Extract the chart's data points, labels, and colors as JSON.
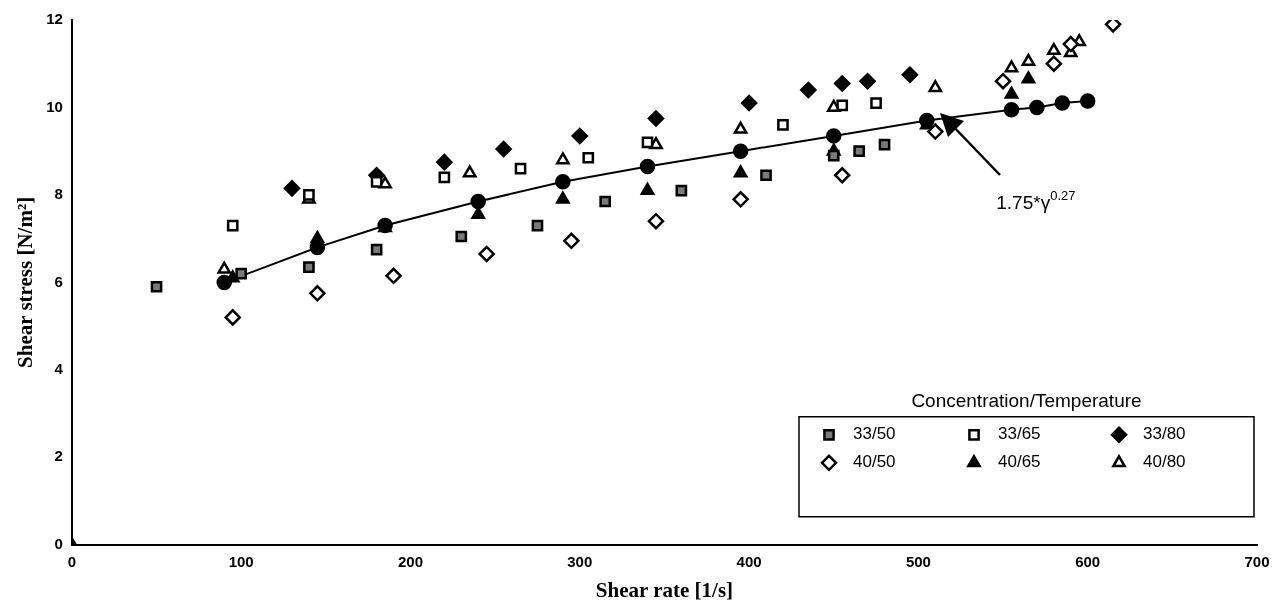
{
  "chart_data": {
    "type": "scatter",
    "xlabel": "Shear rate [1/s]",
    "ylabel": "Shear stress [N/m²]",
    "xlim": [
      0,
      700
    ],
    "xticks": [
      0,
      100,
      200,
      300,
      400,
      500,
      600,
      700
    ],
    "ylim": [
      0,
      12
    ],
    "yticks": [
      0,
      2,
      4,
      6,
      8,
      10,
      12
    ],
    "grid": false,
    "legend": "bottom right",
    "legend_title": "Concentration/Temperature",
    "annotations": [
      "1.75*γ$^{0.27}$"
    ],
    "series": [
      {
        "name": "33/50",
        "color": "#7a7a7a",
        "marker": "square",
        "x": [
          50,
          100,
          140,
          180,
          230,
          275,
          315,
          360,
          410,
          450,
          465,
          480
        ],
        "values": [
          5.9,
          6.2,
          6.35,
          6.75,
          7.05,
          7.3,
          7.85,
          8.1,
          8.45,
          8.9,
          9.0,
          9.15
        ]
      },
      {
        "name": "33/65",
        "color": "#ffffff",
        "marker": "square",
        "x": [
          95,
          140,
          180,
          220,
          265,
          305,
          340,
          420,
          455,
          475
        ],
        "values": [
          7.3,
          8.0,
          8.3,
          8.4,
          8.6,
          8.85,
          9.2,
          9.6,
          10.05,
          10.1
        ]
      },
      {
        "name": "33/80",
        "color": "#000000",
        "marker": "diamond",
        "x": [
          130,
          180,
          220,
          255,
          300,
          345,
          400,
          435,
          455,
          470,
          495
        ],
        "values": [
          8.15,
          8.45,
          8.75,
          9.05,
          9.35,
          9.75,
          10.1,
          10.4,
          10.55,
          10.6,
          10.75
        ]
      },
      {
        "name": "40/50",
        "color": "#ffffff",
        "marker": "diamond",
        "x": [
          95,
          145,
          190,
          245,
          295,
          345,
          395,
          455,
          510,
          550,
          580,
          590,
          615
        ],
        "values": [
          5.2,
          5.75,
          6.15,
          6.65,
          6.95,
          7.4,
          7.9,
          8.45,
          9.45,
          10.6,
          11.0,
          11.45,
          11.9
        ]
      },
      {
        "name": "40/65",
        "color": "#000000",
        "marker": "triangle",
        "x": [
          0,
          95,
          145,
          185,
          240,
          290,
          340,
          395,
          450,
          505,
          555,
          565
        ],
        "values": [
          0,
          6.1,
          7.0,
          7.25,
          7.55,
          7.9,
          8.1,
          8.5,
          9.0,
          9.6,
          10.3,
          10.65
        ]
      },
      {
        "name": "40/80",
        "color": "#ffffff",
        "marker": "triangle",
        "x": [
          90,
          140,
          185,
          235,
          290,
          345,
          395,
          450,
          510,
          555,
          565,
          580,
          590,
          595
        ],
        "values": [
          6.3,
          7.9,
          8.25,
          8.5,
          8.8,
          9.15,
          9.5,
          10.0,
          10.45,
          10.9,
          11.05,
          11.3,
          11.25,
          11.5
        ]
      },
      {
        "type": "line",
        "color": "#000000",
        "marker": "circle",
        "x": [
          90,
          145,
          185,
          240,
          290,
          340,
          395,
          450,
          505,
          555,
          570,
          585,
          600
        ],
        "values": [
          6.0,
          6.8,
          7.3,
          7.85,
          8.3,
          8.65,
          9.0,
          9.35,
          9.7,
          9.95,
          10.0,
          10.1,
          10.15
        ]
      }
    ]
  }
}
